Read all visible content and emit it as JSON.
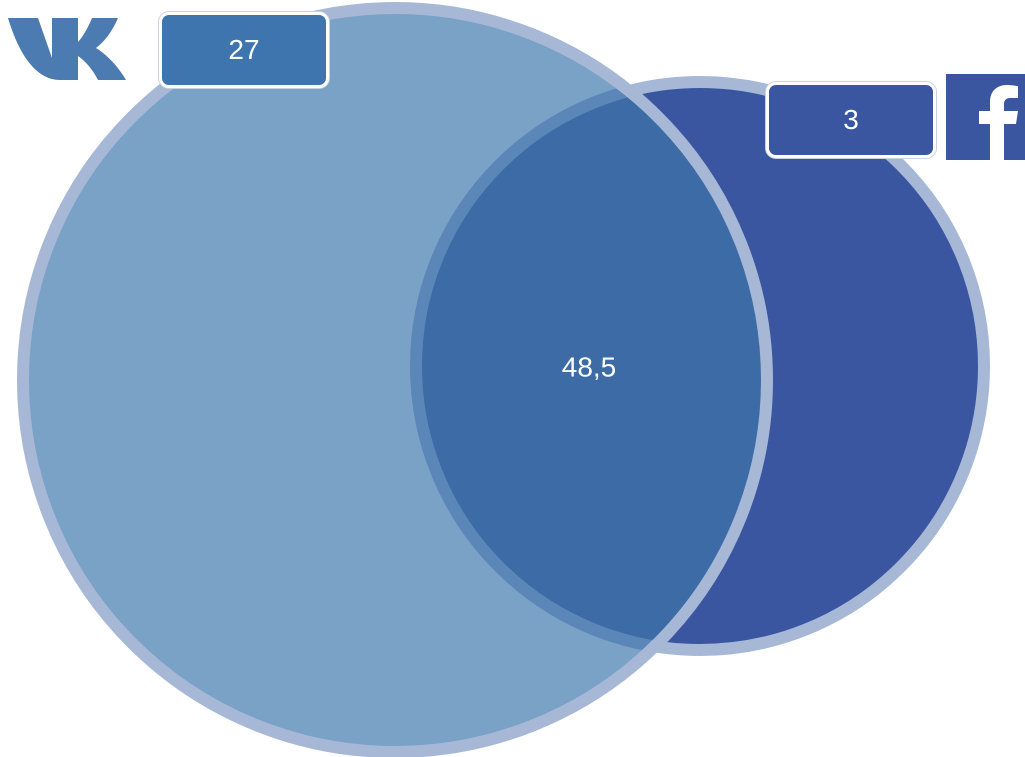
{
  "vk": {
    "value": "27",
    "color": "#7aa1c6",
    "badge_color": "#3e75ae"
  },
  "facebook": {
    "value": "3",
    "color": "#3a56a1",
    "badge_color": "#3a56a1"
  },
  "overlap": {
    "value": "48,5",
    "color": "#3c6ba5"
  },
  "outline_color": "#a6b8d6",
  "icons": {
    "left_logo": "vk-logo-icon",
    "right_logo": "facebook-logo-icon"
  }
}
